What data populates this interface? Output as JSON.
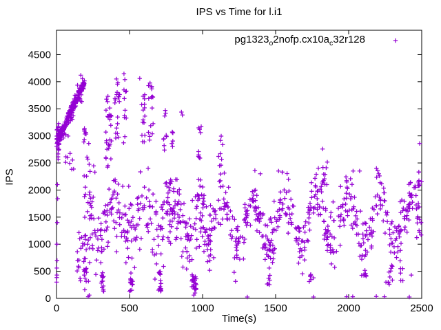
{
  "title": "IPS vs Time for l.i1",
  "axes": {
    "xlabel": "Time(s)",
    "ylabel": "IPS",
    "xlim": [
      0,
      2500
    ],
    "ylim": [
      0,
      4950
    ],
    "xticks": [
      0,
      500,
      1000,
      1500,
      2000,
      2500
    ],
    "yticks": [
      0,
      500,
      1000,
      1500,
      2000,
      2500,
      3000,
      3500,
      4000,
      4500
    ]
  },
  "legend": {
    "parts": [
      {
        "text": "pg1323"
      },
      {
        "sub": "o"
      },
      {
        "text": "2nofp.cx10a"
      },
      {
        "sub": "c"
      },
      {
        "text": "32r128"
      }
    ],
    "marker": "plus"
  },
  "style": {
    "marker_color": "#9400D3",
    "axis_color": "#000000",
    "background": "#ffffff"
  },
  "chart_data": {
    "type": "scatter",
    "title": "IPS vs Time for l.i1",
    "xlabel": "Time(s)",
    "ylabel": "IPS",
    "xlim": [
      0,
      2500
    ],
    "ylim": [
      0,
      4950
    ],
    "grid": false,
    "legend_position": "top-right-inside",
    "series_name": "pg1323_o2nofp.cx10a_c32r128",
    "marker": "plus",
    "color": "#9400D3",
    "seed": 1323,
    "explicit_points": [
      [
        1,
        300
      ],
      [
        2,
        385
      ],
      [
        3,
        430
      ],
      [
        2,
        560
      ],
      [
        4,
        700
      ],
      [
        3,
        1000
      ],
      [
        5,
        1400
      ],
      [
        8,
        1840
      ],
      [
        6,
        2100
      ],
      [
        190,
        430
      ],
      [
        217,
        30
      ],
      [
        224,
        60
      ],
      [
        352,
        3730
      ],
      [
        410,
        4050
      ],
      [
        420,
        3980
      ],
      [
        462,
        4145
      ],
      [
        468,
        4040
      ],
      [
        500,
        130
      ],
      [
        505,
        300
      ],
      [
        570,
        4060
      ],
      [
        604,
        3760
      ],
      [
        640,
        3975
      ],
      [
        650,
        3900
      ],
      [
        745,
        3470
      ],
      [
        855,
        3440
      ],
      [
        862,
        3385
      ],
      [
        940,
        60
      ],
      [
        948,
        100
      ],
      [
        1306,
        25
      ],
      [
        1759,
        25
      ],
      [
        1759,
        380
      ],
      [
        1986,
        30
      ],
      [
        2028,
        30
      ],
      [
        2189,
        35
      ],
      [
        2245,
        30
      ],
      [
        2415,
        25
      ],
      [
        1821,
        2758
      ],
      [
        1854,
        2515
      ],
      [
        2486,
        2860
      ],
      [
        2113,
        430
      ],
      [
        2255,
        300
      ],
      [
        2278,
        260
      ],
      [
        2429,
        430
      ],
      [
        1358,
        2360
      ],
      [
        1395,
        2300
      ],
      [
        1520,
        2350
      ],
      [
        1545,
        2330
      ],
      [
        2030,
        2350
      ],
      [
        2075,
        2350
      ],
      [
        2190,
        2400
      ],
      [
        2480,
        2330
      ]
    ],
    "generators": [
      {
        "kind": "column",
        "t": [
          1,
          16
        ],
        "n": 22,
        "y": [
          2550,
          3250
        ]
      },
      {
        "kind": "column",
        "t": [
          55,
          135
        ],
        "n": 8,
        "y": [
          2350,
          2700
        ]
      },
      {
        "kind": "ramp",
        "t": [
          8,
          192
        ],
        "n": 150,
        "y": [
          2900,
          4000
        ],
        "sigma": 85
      },
      {
        "kind": "ramp",
        "t": [
          10,
          190
        ],
        "n": 70,
        "y": [
          2900,
          3990
        ],
        "sigma": 30
      },
      {
        "kind": "column",
        "t": [
          186,
          228
        ],
        "n": 36,
        "y": [
          30,
          3300
        ]
      },
      {
        "kind": "column",
        "t": [
          140,
          205
        ],
        "n": 22,
        "y": [
          300,
          1350
        ]
      },
      {
        "kind": "column",
        "t": [
          306,
          326
        ],
        "n": 14,
        "y": [
          90,
          520
        ]
      },
      {
        "kind": "column",
        "t": [
          505,
          522
        ],
        "n": 12,
        "y": [
          110,
          500
        ]
      },
      {
        "kind": "column",
        "t": [
          698,
          716
        ],
        "n": 16,
        "y": [
          90,
          500
        ]
      },
      {
        "kind": "column",
        "t": [
          925,
          958
        ],
        "n": 26,
        "y": [
          80,
          460
        ]
      },
      {
        "kind": "column",
        "t": [
          1440,
          1462
        ],
        "n": 6,
        "y": [
          250,
          520
        ]
      },
      {
        "kind": "column",
        "t": [
          1730,
          1748
        ],
        "n": 5,
        "y": [
          250,
          450
        ]
      },
      {
        "kind": "column",
        "t": [
          2095,
          2125
        ],
        "n": 6,
        "y": [
          380,
          620
        ]
      },
      {
        "kind": "column",
        "t": [
          2270,
          2300
        ],
        "n": 8,
        "y": [
          250,
          700
        ]
      },
      {
        "kind": "column",
        "t": [
          2350,
          2375
        ],
        "n": 5,
        "y": [
          300,
          650
        ]
      },
      {
        "kind": "column",
        "t": [
          338,
          378
        ],
        "n": 26,
        "y": [
          2450,
          3730
        ]
      },
      {
        "kind": "column",
        "t": [
          395,
          432
        ],
        "n": 18,
        "y": [
          2950,
          4060
        ]
      },
      {
        "kind": "column",
        "t": [
          455,
          480
        ],
        "n": 10,
        "y": [
          2750,
          4000
        ]
      },
      {
        "kind": "column",
        "t": [
          583,
          607
        ],
        "n": 14,
        "y": [
          2850,
          3760
        ]
      },
      {
        "kind": "column",
        "t": [
          628,
          662
        ],
        "n": 14,
        "y": [
          2750,
          3980
        ]
      },
      {
        "kind": "column",
        "t": [
          733,
          757
        ],
        "n": 8,
        "y": [
          2650,
          3480
        ]
      },
      {
        "kind": "column",
        "t": [
          788,
          808
        ],
        "n": 6,
        "y": [
          2800,
          3100
        ]
      },
      {
        "kind": "column",
        "t": [
          968,
          996
        ],
        "n": 8,
        "y": [
          2550,
          3300
        ]
      },
      {
        "kind": "column",
        "t": [
          1098,
          1138
        ],
        "n": 8,
        "y": [
          2450,
          3085
        ]
      },
      {
        "kind": "column",
        "t": [
          1815,
          1858
        ],
        "n": 10,
        "y": [
          2050,
          2440
        ]
      },
      {
        "kind": "column",
        "t": [
          2465,
          2500
        ],
        "n": 8,
        "y": [
          2050,
          2340
        ]
      },
      {
        "kind": "wave",
        "t": [
          225,
          1010
        ],
        "n": 310,
        "center": 1450,
        "amp": 300,
        "period": 195,
        "crest": 400,
        "sigma": 380,
        "clip": [
          250,
          2700
        ]
      },
      {
        "kind": "wave",
        "t": [
          1010,
          2500
        ],
        "n": 540,
        "center": 1430,
        "amp": 420,
        "period": 215,
        "crest": 1350,
        "sigma": 250,
        "clip": [
          260,
          2450
        ]
      }
    ]
  }
}
